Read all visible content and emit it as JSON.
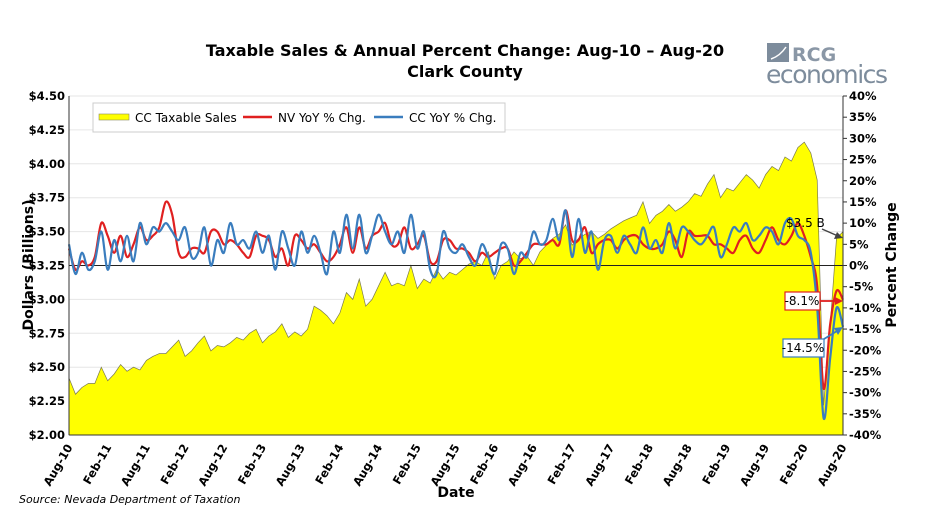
{
  "chart_data": {
    "type": "line",
    "title": "Taxable Sales & Annual Percent Change: Aug-10 – Aug-20",
    "subtitle": "Clark County",
    "xlabel": "Date",
    "ylabel": "Dollars (Billions)",
    "y2label": "Percent Change",
    "ylim": [
      2.0,
      4.5
    ],
    "y2lim": [
      -40,
      40
    ],
    "y_ticks": [
      "$2.00",
      "$2.25",
      "$2.50",
      "$2.75",
      "$3.00",
      "$3.25",
      "$3.50",
      "$3.75",
      "$4.00",
      "$4.25",
      "$4.50"
    ],
    "y2_ticks": [
      "-40%",
      "-35%",
      "-30%",
      "-25%",
      "-20%",
      "-15%",
      "-10%",
      "-5%",
      "0%",
      "5%",
      "10%",
      "15%",
      "20%",
      "25%",
      "30%",
      "35%",
      "40%"
    ],
    "x_ticks": [
      "Aug-10",
      "Feb-11",
      "Aug-11",
      "Feb-12",
      "Aug-12",
      "Feb-13",
      "Aug-13",
      "Feb-14",
      "Aug-14",
      "Feb-15",
      "Aug-15",
      "Feb-16",
      "Aug-16",
      "Feb-17",
      "Aug-17",
      "Feb-18",
      "Aug-18",
      "Feb-19",
      "Aug-19",
      "Feb-20",
      "Aug-20"
    ],
    "x_start": "Aug-10",
    "x_end": "Aug-20",
    "x_frequency": "monthly",
    "grid": true,
    "legend_position": "top-left",
    "series": [
      {
        "name": "CC Taxable Sales",
        "type": "area",
        "axis": "left",
        "color": "#FFFF00",
        "values": [
          2.42,
          2.3,
          2.35,
          2.38,
          2.38,
          2.5,
          2.4,
          2.45,
          2.52,
          2.47,
          2.5,
          2.48,
          2.55,
          2.58,
          2.6,
          2.6,
          2.65,
          2.7,
          2.58,
          2.62,
          2.68,
          2.73,
          2.62,
          2.66,
          2.65,
          2.68,
          2.72,
          2.7,
          2.75,
          2.78,
          2.68,
          2.73,
          2.76,
          2.82,
          2.72,
          2.76,
          2.73,
          2.78,
          2.95,
          2.92,
          2.88,
          2.82,
          2.9,
          3.05,
          3.0,
          3.15,
          2.95,
          3.0,
          3.1,
          3.2,
          3.1,
          3.12,
          3.1,
          3.25,
          3.08,
          3.15,
          3.12,
          3.22,
          3.15,
          3.2,
          3.18,
          3.22,
          3.26,
          3.28,
          3.25,
          3.35,
          3.15,
          3.25,
          3.28,
          3.35,
          3.3,
          3.32,
          3.25,
          3.35,
          3.4,
          3.45,
          3.48,
          3.55,
          3.4,
          3.45,
          3.48,
          3.5,
          3.45,
          3.48,
          3.52,
          3.55,
          3.58,
          3.6,
          3.62,
          3.72,
          3.56,
          3.62,
          3.65,
          3.7,
          3.65,
          3.68,
          3.72,
          3.78,
          3.76,
          3.85,
          3.92,
          3.75,
          3.82,
          3.8,
          3.86,
          3.92,
          3.88,
          3.82,
          3.92,
          3.98,
          3.95,
          4.05,
          4.02,
          4.12,
          4.16,
          4.08,
          3.88,
          2.22,
          2.8,
          3.45,
          3.5
        ]
      },
      {
        "name": "NV YoY % Chg.",
        "type": "line",
        "axis": "right",
        "color": "#E02020",
        "values": [
          4,
          -1,
          1,
          0,
          2,
          10,
          7,
          3,
          7,
          2,
          5,
          9,
          6,
          7,
          9,
          15,
          12,
          3,
          2,
          4,
          4,
          3,
          8,
          8,
          5,
          6,
          5,
          3,
          2,
          7,
          7,
          6,
          2,
          4,
          0,
          7,
          6,
          4,
          5,
          3,
          1,
          2,
          5,
          9,
          3,
          9,
          4,
          7,
          8,
          10,
          5,
          5,
          9,
          4,
          5,
          7,
          1,
          1,
          6,
          6,
          4,
          4,
          3,
          1,
          3,
          2,
          3,
          4,
          4,
          0,
          1,
          3,
          5,
          5,
          5,
          6,
          5,
          13,
          6,
          6,
          9,
          3,
          5,
          6,
          6,
          4,
          6,
          7,
          7,
          5,
          4,
          4,
          5,
          8,
          6,
          2,
          8,
          7,
          7,
          7,
          5,
          5,
          4,
          3,
          6,
          7,
          4,
          3,
          6,
          9,
          6,
          5,
          7,
          10,
          7,
          2,
          -5,
          -29,
          -14,
          -6,
          -8.1
        ]
      },
      {
        "name": "CC YoY % Chg.",
        "type": "line",
        "axis": "right",
        "color": "#3A7DBE",
        "values": [
          5,
          -2,
          3,
          -1,
          1,
          8,
          -1,
          6,
          1,
          7,
          1,
          10,
          5,
          9,
          8,
          10,
          8,
          6,
          9,
          2,
          3,
          9,
          0,
          6,
          3,
          10,
          5,
          6,
          4,
          8,
          3,
          7,
          -1,
          8,
          4,
          0,
          8,
          3,
          7,
          3,
          -2,
          8,
          3,
          12,
          4,
          12,
          3,
          7,
          12,
          8,
          5,
          8,
          3,
          12,
          4,
          8,
          -1,
          -2,
          8,
          4,
          3,
          5,
          2,
          0,
          5,
          2,
          -2,
          5,
          4,
          -2,
          3,
          2,
          8,
          5,
          6,
          11,
          6,
          13,
          2,
          11,
          3,
          8,
          -1,
          6,
          7,
          3,
          7,
          5,
          3,
          9,
          4,
          6,
          3,
          10,
          4,
          9,
          8,
          6,
          5,
          7,
          9,
          2,
          5,
          9,
          8,
          10,
          6,
          7,
          9,
          8,
          5,
          10,
          11,
          7,
          6,
          3,
          -10,
          -36,
          -22,
          -10,
          -14.5
        ]
      }
    ],
    "annotations": [
      {
        "text": "$3.5 B",
        "series": "CC Taxable Sales",
        "x": "Aug-20",
        "value": 3.5
      },
      {
        "text": "-8.1%",
        "series": "NV YoY % Chg.",
        "x": "Aug-20",
        "value": -8.1
      },
      {
        "text": "-14.5%",
        "series": "CC YoY % Chg.",
        "x": "Aug-20",
        "value": -14.5
      }
    ]
  },
  "logo": {
    "text_top": "RCG",
    "text_bottom": "economics"
  },
  "source": "Source: Nevada Department of Taxation"
}
